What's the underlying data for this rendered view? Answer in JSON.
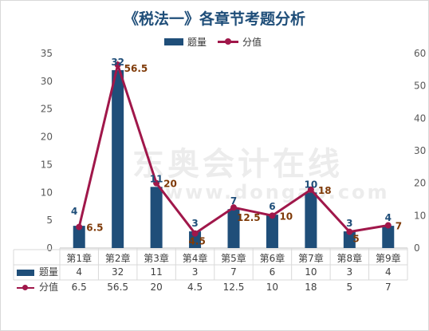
{
  "title": "《税法一》各章节考题分析",
  "watermark": {
    "name": "东奥会计在线",
    "site": "www.dongao.com"
  },
  "colors": {
    "bar": "#1f4e79",
    "line": "#a0174a",
    "label_bar": "#1f4e79",
    "label_line": "#7f3a08",
    "grid": "#d9d9d9"
  },
  "chart_data": {
    "type": "bar",
    "categories": [
      "第1章",
      "第2章",
      "第3章",
      "第4章",
      "第5章",
      "第6章",
      "第7章",
      "第8章",
      "第9章"
    ],
    "series": [
      {
        "name": "题量",
        "type": "bar",
        "axis": "left",
        "values": [
          4,
          32,
          11,
          3,
          7,
          6,
          10,
          3,
          4
        ]
      },
      {
        "name": "分值",
        "type": "line",
        "axis": "right",
        "values": [
          6.5,
          56.5,
          20,
          4.5,
          12.5,
          10,
          18,
          5,
          7
        ]
      }
    ],
    "y_left": {
      "ylim": [
        0,
        35
      ],
      "ticks": [
        0,
        5,
        10,
        15,
        20,
        25,
        30,
        35
      ]
    },
    "y_right": {
      "ylim": [
        0,
        60
      ],
      "ticks": [
        0,
        10,
        20,
        30,
        40,
        50,
        60
      ]
    },
    "legend": "top-center",
    "data_table": true,
    "data_labels": {
      "bar": [
        "4",
        "32",
        "11",
        "3",
        "7",
        "6",
        "10",
        "3",
        "4"
      ],
      "line": [
        "6.5",
        "56.5",
        "20",
        "4.5",
        "12.5",
        "10",
        "18",
        "5",
        "7"
      ]
    },
    "table_rows": [
      {
        "label": "题量",
        "values": [
          "4",
          "32",
          "11",
          "3",
          "7",
          "6",
          "10",
          "3",
          "4"
        ]
      },
      {
        "label": "分值",
        "values": [
          "6.5",
          "56.5",
          "20",
          "4.5",
          "12.5",
          "10",
          "18",
          "5",
          "7"
        ]
      }
    ]
  }
}
